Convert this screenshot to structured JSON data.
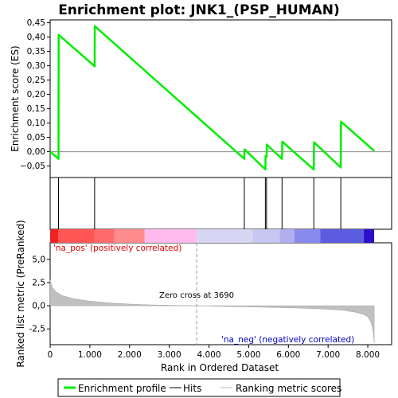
{
  "chart_data": {
    "type": "line",
    "title": "Enrichment plot: JNK1_(PSP_HUMAN)",
    "top_panel": {
      "ylabel": "Enrichment score (ES)",
      "ylim": [
        -0.09,
        0.46
      ],
      "yticks": [
        -0.05,
        0.0,
        0.05,
        0.1,
        0.15,
        0.2,
        0.25,
        0.3,
        0.35,
        0.4,
        0.45
      ],
      "ytick_labels": [
        "−0,05",
        "0,00",
        "0,05",
        "0,10",
        "0,15",
        "0,20",
        "0,25",
        "0,30",
        "0,35",
        "0,40",
        "0,45"
      ],
      "series": [
        {
          "name": "Enrichment profile",
          "color": "#00ee00",
          "points": [
            [
              0,
              0.0
            ],
            [
              210,
              -0.025
            ],
            [
              215,
              0.408
            ],
            [
              1120,
              0.298
            ],
            [
              1125,
              0.438
            ],
            [
              4890,
              -0.025
            ],
            [
              4895,
              0.008
            ],
            [
              5420,
              -0.062
            ],
            [
              5425,
              -0.015
            ],
            [
              5450,
              -0.018
            ],
            [
              5455,
              0.025
            ],
            [
              5840,
              -0.025
            ],
            [
              5845,
              0.035
            ],
            [
              6640,
              -0.062
            ],
            [
              6645,
              0.033
            ],
            [
              7320,
              -0.055
            ],
            [
              7325,
              0.105
            ],
            [
              8160,
              0.003
            ]
          ]
        }
      ]
    },
    "hits": {
      "legend": "Hits",
      "positions": [
        210,
        1120,
        4890,
        5420,
        5450,
        5840,
        6640,
        7320
      ]
    },
    "ranking": {
      "legend": "Ranking metric scores",
      "ylabel": "Ranked list metric (PreRanked)",
      "ylim": [
        -4.2,
        6.8
      ],
      "yticks": [
        -2.5,
        0.0,
        2.5,
        5.0
      ],
      "ytick_labels": [
        "-2,5",
        "0,0",
        "2,5",
        "5,0"
      ],
      "profile": [
        [
          0,
          2.8
        ],
        [
          50,
          2.0
        ],
        [
          150,
          1.5
        ],
        [
          300,
          1.1
        ],
        [
          600,
          0.75
        ],
        [
          1000,
          0.5
        ],
        [
          1500,
          0.3
        ],
        [
          2000,
          0.18
        ],
        [
          2500,
          0.1
        ],
        [
          3000,
          0.05
        ],
        [
          3690,
          0.0
        ],
        [
          4500,
          -0.08
        ],
        [
          5000,
          -0.12
        ],
        [
          5500,
          -0.17
        ],
        [
          6000,
          -0.22
        ],
        [
          6500,
          -0.28
        ],
        [
          7000,
          -0.38
        ],
        [
          7400,
          -0.5
        ],
        [
          7700,
          -0.7
        ],
        [
          7900,
          -0.95
        ],
        [
          8000,
          -1.2
        ],
        [
          8080,
          -1.8
        ],
        [
          8130,
          -2.6
        ],
        [
          8160,
          -4.0
        ]
      ],
      "zero_cross_label": "Zero cross at 3690",
      "zero_cross": 3690,
      "pos_label": "'na_pos' (positively correlated)",
      "neg_label": "'na_neg' (negatively correlated)"
    },
    "xlabel": "Rank in Ordered Dataset",
    "xlim": [
      0,
      8600
    ],
    "xticks": [
      0,
      1000,
      2000,
      3000,
      4000,
      5000,
      6000,
      7000,
      8000
    ],
    "xtick_labels": [
      "0",
      "1.000",
      "2.000",
      "3.000",
      "4.000",
      "5.000",
      "6.000",
      "7.000",
      "8.000"
    ],
    "n_genes": 8160,
    "color_bar": [
      {
        "from": 0,
        "to": 200,
        "color": "#ee2222"
      },
      {
        "from": 200,
        "to": 1120,
        "color": "#ff5555"
      },
      {
        "from": 1120,
        "to": 1620,
        "color": "#ff6b6b"
      },
      {
        "from": 1620,
        "to": 2380,
        "color": "#ff8c8c"
      },
      {
        "from": 2380,
        "to": 3690,
        "color": "#ffbbee"
      },
      {
        "from": 3690,
        "to": 5100,
        "color": "#d7d7f5"
      },
      {
        "from": 5100,
        "to": 5780,
        "color": "#c7c7f2"
      },
      {
        "from": 5780,
        "to": 6150,
        "color": "#b0b0ee"
      },
      {
        "from": 6150,
        "to": 6800,
        "color": "#8a8aec"
      },
      {
        "from": 6800,
        "to": 7900,
        "color": "#5c5ce0"
      },
      {
        "from": 7900,
        "to": 8160,
        "color": "#2a10c8"
      }
    ],
    "legend_entries": [
      "Enrichment profile",
      "Hits",
      "Ranking metric scores"
    ]
  }
}
